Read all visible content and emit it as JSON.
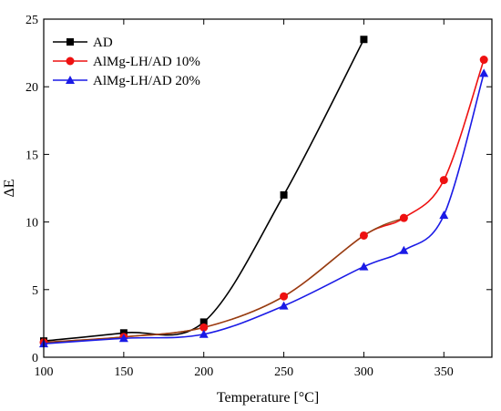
{
  "chart_data": {
    "type": "line",
    "xlabel": "Temperature [°C]",
    "ylabel": "ΔE",
    "xlim": [
      100,
      380
    ],
    "ylim": [
      0,
      25
    ],
    "x_ticks": [
      100,
      150,
      200,
      250,
      300,
      350
    ],
    "y_ticks": [
      0,
      5,
      10,
      15,
      20,
      25
    ],
    "legend_position": "top-left",
    "grid": false,
    "series": [
      {
        "name": "AD",
        "color": "#000000",
        "marker": "square",
        "x": [
          100,
          150,
          200,
          250,
          300
        ],
        "y": [
          1.2,
          1.8,
          2.6,
          12.0,
          23.5
        ]
      },
      {
        "name": "AlMg-LH/AD 10%",
        "color": "#ee1111",
        "fit_color": "#8b4513",
        "marker": "circle",
        "x": [
          100,
          150,
          200,
          250,
          300,
          325,
          350,
          375
        ],
        "y": [
          1.1,
          1.5,
          2.2,
          4.5,
          9.0,
          10.3,
          13.1,
          22.0
        ]
      },
      {
        "name": "AlMg-LH/AD 20%",
        "color": "#1a1ae6",
        "marker": "triangle",
        "x": [
          100,
          150,
          200,
          250,
          300,
          325,
          350,
          375
        ],
        "y": [
          1.0,
          1.4,
          1.7,
          3.8,
          6.7,
          7.9,
          10.5,
          21.0
        ]
      }
    ]
  }
}
